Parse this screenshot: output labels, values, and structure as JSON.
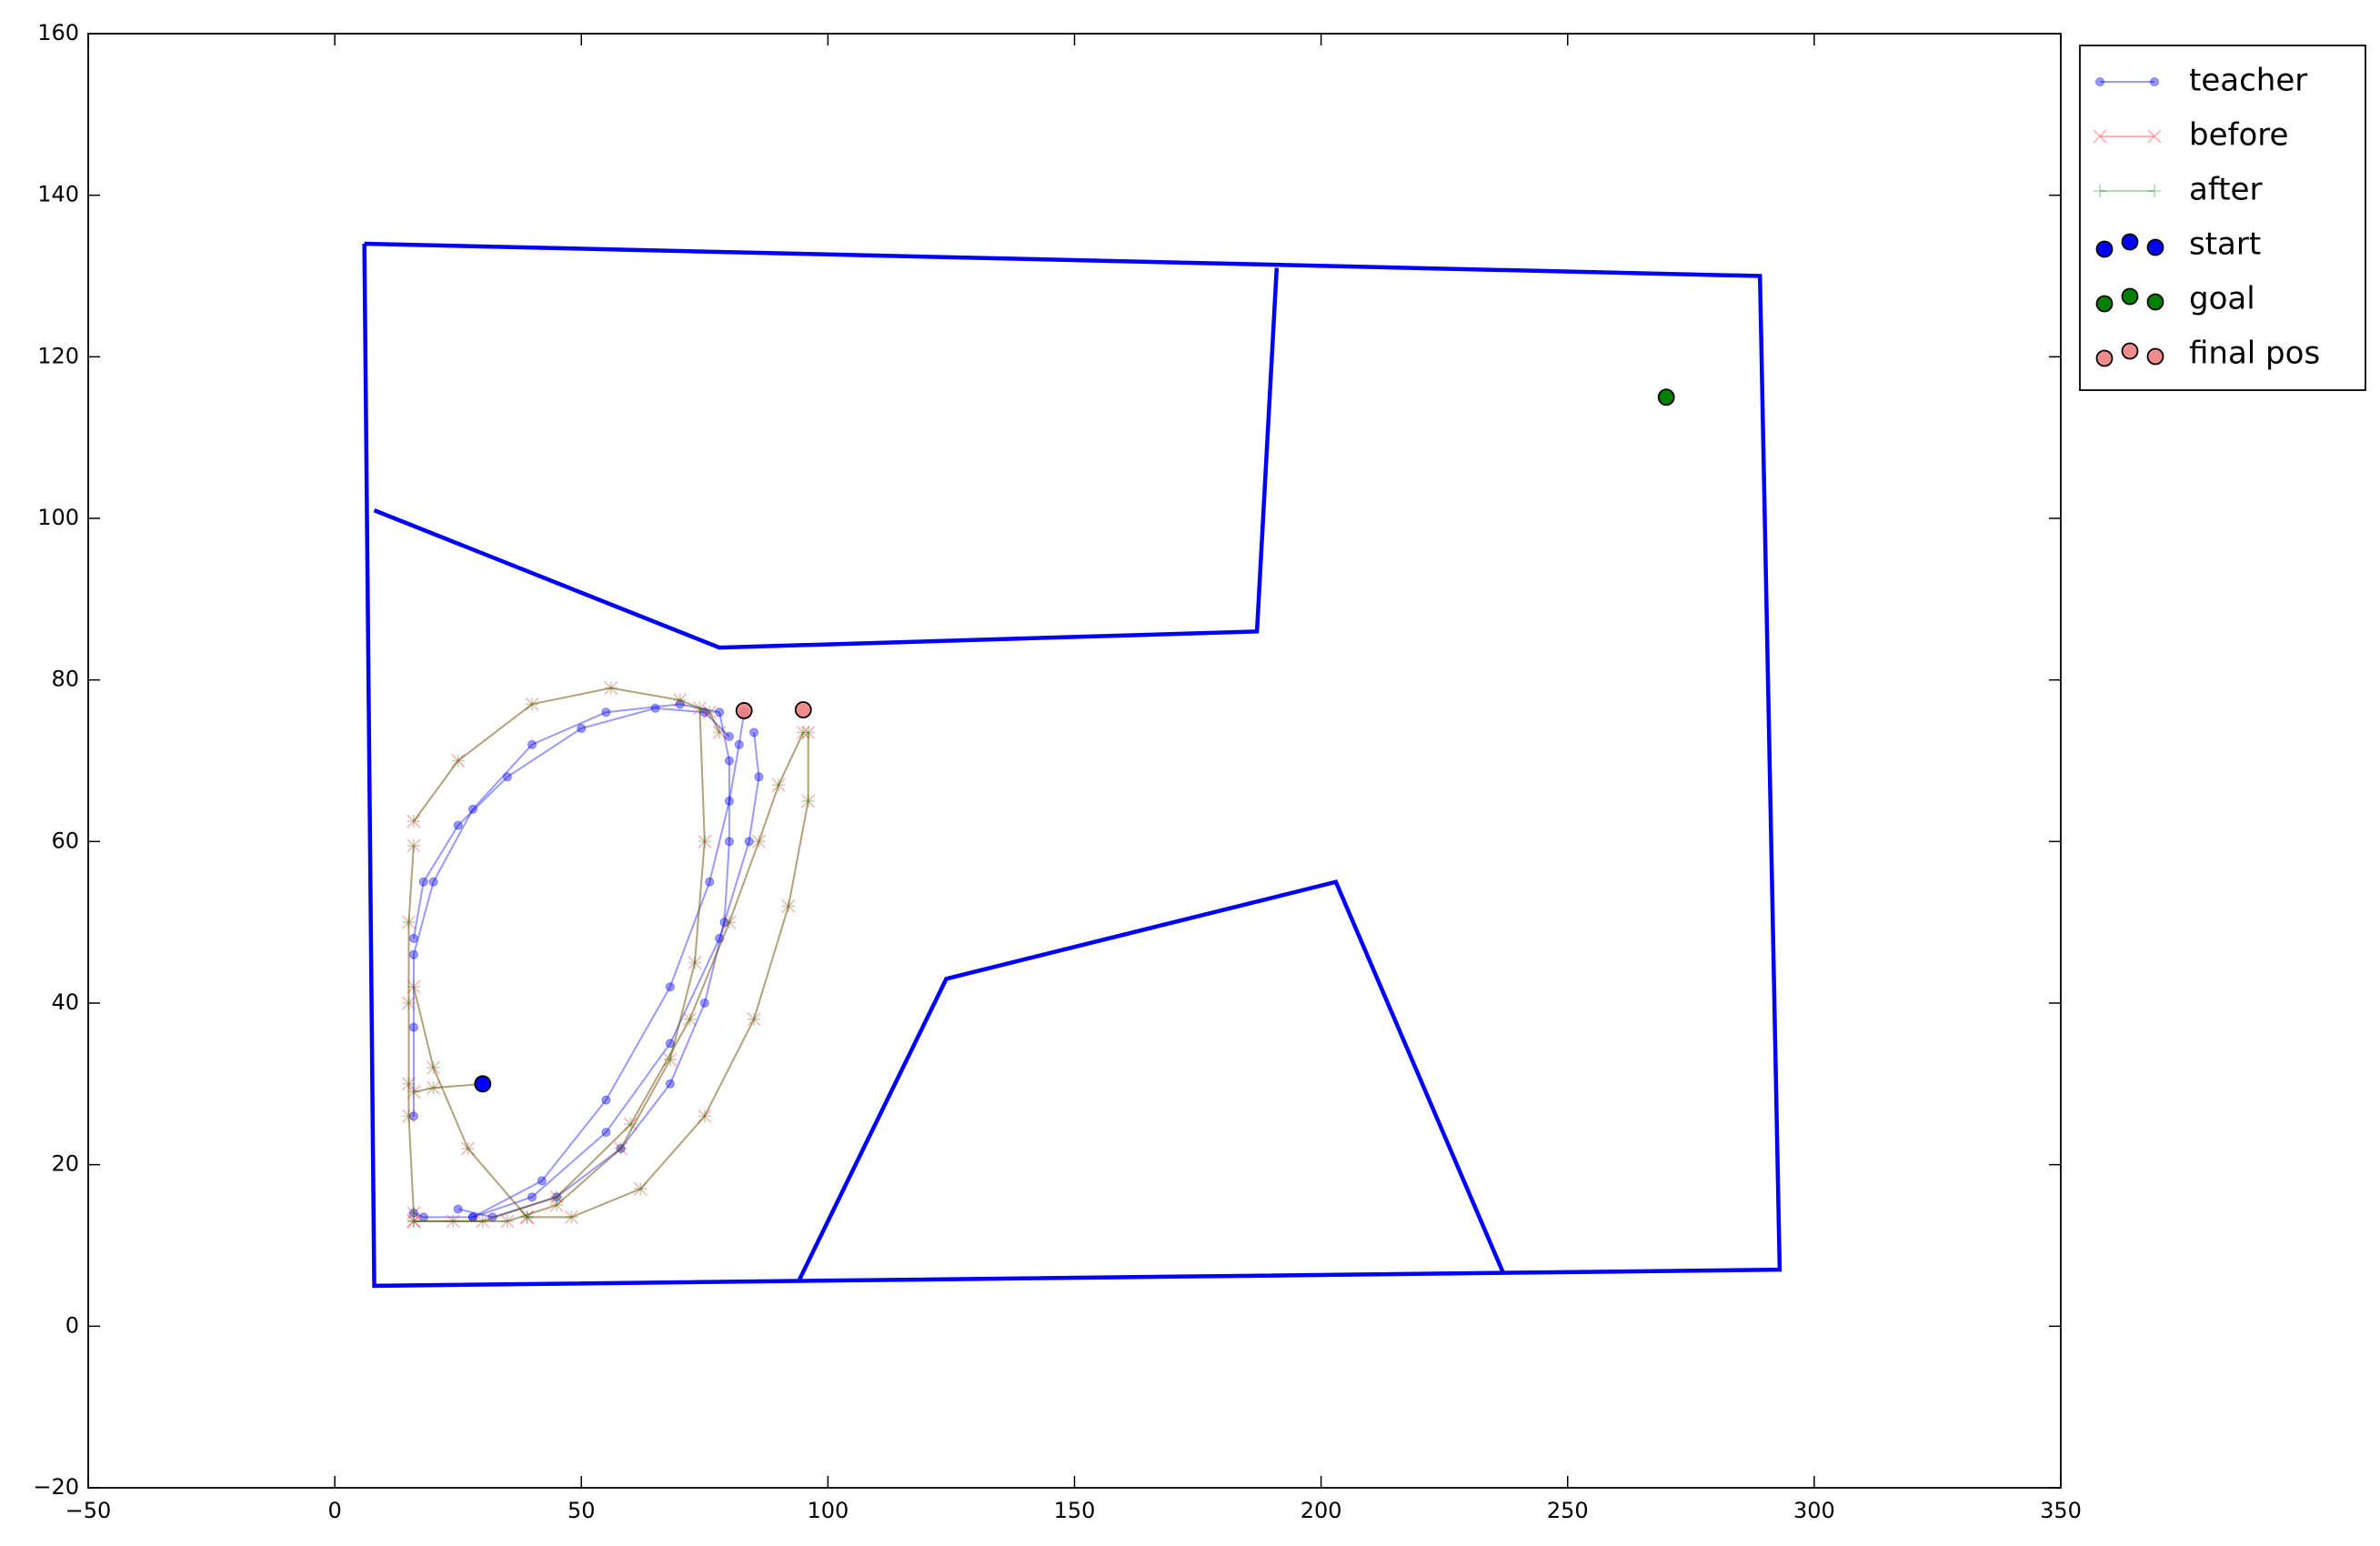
{
  "chart_data": {
    "type": "line",
    "xlim": [
      -50,
      350
    ],
    "ylim": [
      -20,
      160
    ],
    "xticks": [
      {
        "value": -50,
        "label": "−50"
      },
      0,
      50,
      100,
      150,
      200,
      250,
      300,
      350
    ],
    "yticks": [
      {
        "value": -20,
        "label": "−20"
      },
      0,
      20,
      40,
      60,
      80,
      100,
      120,
      140,
      160
    ],
    "legend": "outside-upper-right",
    "walls": {
      "color": "#0000ff",
      "paths": [
        {
          "x": [
            6,
            289,
            293,
            8,
            6
          ],
          "y": [
            134,
            130,
            7,
            5,
            134
          ]
        },
        {
          "x": [
            8,
            78,
            187,
            191
          ],
          "y": [
            101,
            84,
            86,
            131
          ]
        },
        {
          "x": [
            94,
            124,
            203,
            237
          ],
          "y": [
            5.5,
            43,
            55,
            6.5
          ]
        }
      ]
    },
    "series": [
      {
        "name": "teacher",
        "color": "#0000ff",
        "marker": "o",
        "alpha": 0.4,
        "paths": [
          {
            "x": [
              16,
              16,
              16,
              20,
              28,
              40,
              55,
              70,
              78,
              80,
              80,
              79,
              75,
              68,
              58,
              45,
              32,
              25
            ],
            "y": [
              26,
              37,
              46,
              55,
              64,
              72,
              76,
              77,
              76,
              70,
              60,
              50,
              40,
              30,
              22,
              16,
              13.5,
              14.5
            ]
          },
          {
            "x": [
              16,
              18,
              28,
              42,
              55,
              68,
              76,
              80,
              82,
              83
            ],
            "y": [
              14,
              13.5,
              13.5,
              18,
              28,
              42,
              55,
              65,
              72,
              76
            ]
          },
          {
            "x": [
              28,
              40,
              55,
              68,
              78,
              84,
              86,
              85
            ],
            "y": [
              13.5,
              16,
              24,
              35,
              48,
              60,
              68,
              73.5
            ]
          },
          {
            "x": [
              16,
              18,
              25,
              35,
              50,
              65,
              75,
              80
            ],
            "y": [
              48,
              55,
              62,
              68,
              74,
              76.5,
              76,
              73
            ]
          }
        ]
      },
      {
        "name": "before",
        "color": "#ff0000",
        "marker": "x",
        "alpha": 0.3,
        "paths": [
          {
            "x": [
              16,
              25,
              40,
              56,
              70,
              76,
              78
            ],
            "y": [
              62.5,
              70,
              77,
              79,
              77.5,
              76,
              73.5
            ]
          },
          {
            "x": [
              74,
              75,
              73,
              68,
              58,
              45,
              35,
              24,
              16
            ],
            "y": [
              76.5,
              60,
              45,
              33,
              22,
              15,
              13,
              13,
              13
            ]
          },
          {
            "x": [
              16,
              15,
              15,
              15,
              15,
              16
            ],
            "y": [
              59.5,
              50,
              40,
              30,
              26,
              14
            ]
          },
          {
            "x": [
              16,
              20,
              30
            ],
            "y": [
              29,
              29.5,
              30
            ]
          },
          {
            "x": [
              16,
              30,
              45,
              60,
              72,
              80,
              86,
              90,
              95
            ],
            "y": [
              13,
              13,
              16,
              25,
              38,
              50,
              60,
              67,
              73.5
            ]
          },
          {
            "x": [
              16,
              20,
              27,
              39
            ],
            "y": [
              42,
              32,
              22,
              13.5
            ]
          },
          {
            "x": [
              96,
              96,
              92,
              85,
              75,
              62,
              48,
              39
            ],
            "y": [
              73.5,
              65,
              52,
              38,
              26,
              17,
              13.5,
              13.5
            ]
          }
        ]
      },
      {
        "name": "after",
        "color": "#008000",
        "marker": "+",
        "alpha": 0.3,
        "paths": [
          {
            "x": [
              16,
              25,
              40,
              56,
              70,
              76,
              78
            ],
            "y": [
              62.5,
              70,
              77,
              79,
              77.5,
              76,
              73.5
            ]
          },
          {
            "x": [
              74,
              75,
              73,
              68,
              58,
              45,
              35,
              24,
              16
            ],
            "y": [
              76.5,
              60,
              45,
              33,
              22,
              15,
              13,
              13,
              13
            ]
          },
          {
            "x": [
              16,
              15,
              15,
              15,
              15,
              16
            ],
            "y": [
              59.5,
              50,
              40,
              30,
              26,
              14
            ]
          },
          {
            "x": [
              16,
              20,
              30
            ],
            "y": [
              29,
              29.5,
              30
            ]
          },
          {
            "x": [
              16,
              30,
              45,
              60,
              72,
              80,
              86,
              90,
              95
            ],
            "y": [
              13,
              13,
              16,
              25,
              38,
              50,
              60,
              67,
              73.5
            ]
          },
          {
            "x": [
              16,
              20,
              27,
              39
            ],
            "y": [
              42,
              32,
              22,
              13.5
            ]
          },
          {
            "x": [
              96,
              96,
              92,
              85,
              75,
              62,
              48,
              39
            ],
            "y": [
              73.5,
              65,
              52,
              38,
              26,
              17,
              13.5,
              13.5
            ]
          }
        ]
      },
      {
        "name": "start",
        "color": "#0000ff",
        "marker": "dot",
        "alpha": 1,
        "x": [
          30
        ],
        "y": [
          30
        ]
      },
      {
        "name": "goal",
        "color": "#008000",
        "marker": "dot",
        "alpha": 1,
        "x": [
          270
        ],
        "y": [
          115
        ]
      },
      {
        "name": "final pos",
        "color": "#f08080",
        "marker": "dot",
        "alpha": 0.9,
        "x": [
          83,
          95
        ],
        "y": [
          76.2,
          76.3
        ]
      }
    ]
  }
}
